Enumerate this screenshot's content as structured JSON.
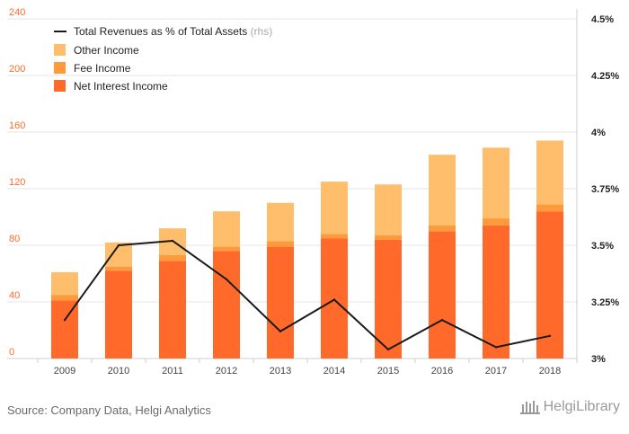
{
  "chart_data": {
    "type": "bar",
    "stacked": true,
    "categories": [
      "2009",
      "2010",
      "2011",
      "2012",
      "2013",
      "2014",
      "2015",
      "2016",
      "2017",
      "2018"
    ],
    "series": [
      {
        "name": "Net Interest Income",
        "color": "#ff6a2b",
        "values": [
          41,
          62,
          69,
          76,
          79,
          85,
          84,
          90,
          94,
          104
        ]
      },
      {
        "name": "Fee Income",
        "color": "#ff9a3c",
        "values": [
          4,
          3,
          4,
          3,
          4,
          3,
          3,
          4,
          5,
          5
        ]
      },
      {
        "name": "Other Income",
        "color": "#ffbe6b",
        "values": [
          16,
          17,
          19,
          25,
          27,
          37,
          36,
          50,
          50,
          45
        ]
      }
    ],
    "line_series": {
      "name": "Total Revenues as % of Total Assets",
      "suffix": "(rhs)",
      "color": "#1a1a1a",
      "values": [
        3.17,
        3.5,
        3.52,
        3.35,
        3.12,
        3.26,
        3.04,
        3.17,
        3.05,
        3.1
      ]
    },
    "y_left": {
      "min": 0,
      "max": 240,
      "ticks": [
        "0",
        "40",
        "80",
        "120",
        "160",
        "200",
        "240"
      ],
      "color": "#ff6a2b"
    },
    "y_right": {
      "min": 3,
      "max": 4.5,
      "ticks": [
        "3%",
        "3.25%",
        "3.5%",
        "3.75%",
        "4%",
        "4.25%",
        "4.5%"
      ]
    },
    "grid": true,
    "legend_position": "top-left"
  },
  "footer": {
    "source": "Source: Company Data, Helgi Analytics",
    "logo_text": "HelgiLibrary"
  }
}
